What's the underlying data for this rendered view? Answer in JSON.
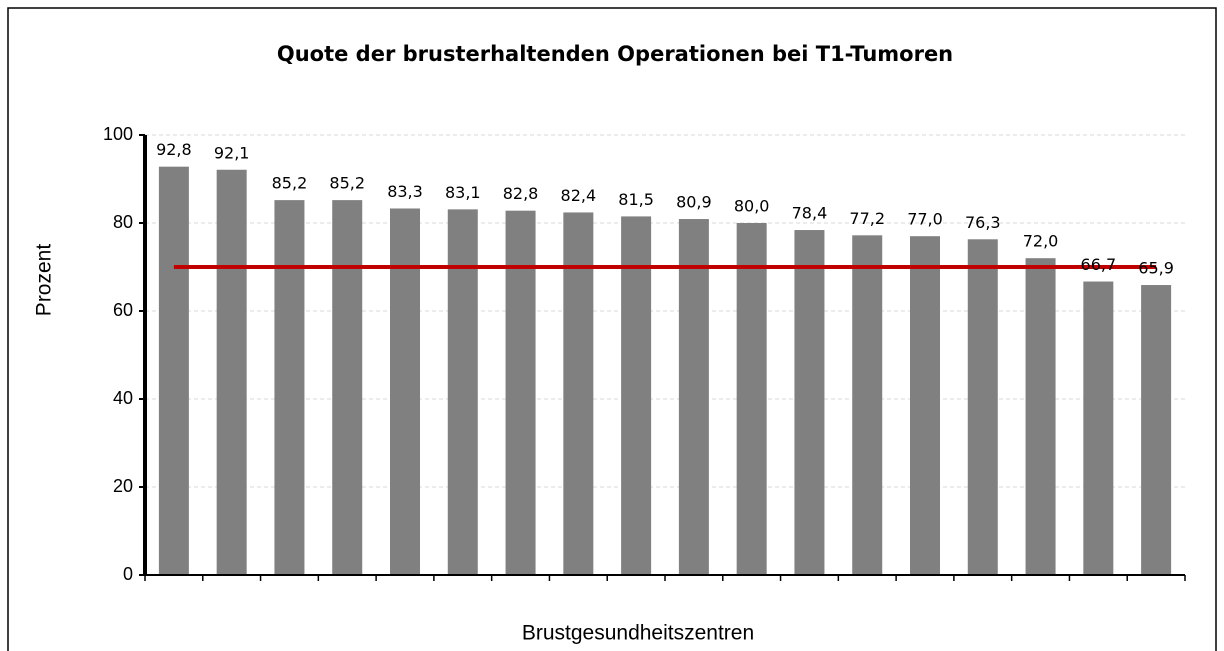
{
  "chart_data": {
    "type": "bar",
    "title": "Quote der brusterhaltenden Operationen bei T1-Tumoren",
    "y_label": "Prozent",
    "x_label": "Brustgesundheitszentren",
    "categories": [
      null,
      null,
      null,
      null,
      null,
      null,
      null,
      null,
      null,
      null,
      null,
      null,
      null,
      null,
      null,
      null,
      null,
      null
    ],
    "values": [
      92.8,
      92.1,
      85.2,
      85.2,
      83.3,
      83.1,
      82.8,
      82.4,
      81.5,
      80.9,
      80.0,
      78.4,
      77.2,
      77.0,
      76.3,
      72.0,
      66.7,
      65.9
    ],
    "value_labels": [
      "92,8",
      "92,1",
      "85,2",
      "85,2",
      "83,3",
      "83,1",
      "82,8",
      "82,4",
      "81,5",
      "80,9",
      "80,0",
      "78,4",
      "77,2",
      "77,0",
      "76,3",
      "72,0",
      "66,7",
      "65,9"
    ],
    "color": "#808080",
    "ylim": [
      0,
      100
    ],
    "yticks": [
      0,
      20,
      40,
      60,
      80,
      100
    ],
    "grid": true,
    "reference_line": {
      "value": 70,
      "color": "#c00000"
    }
  }
}
